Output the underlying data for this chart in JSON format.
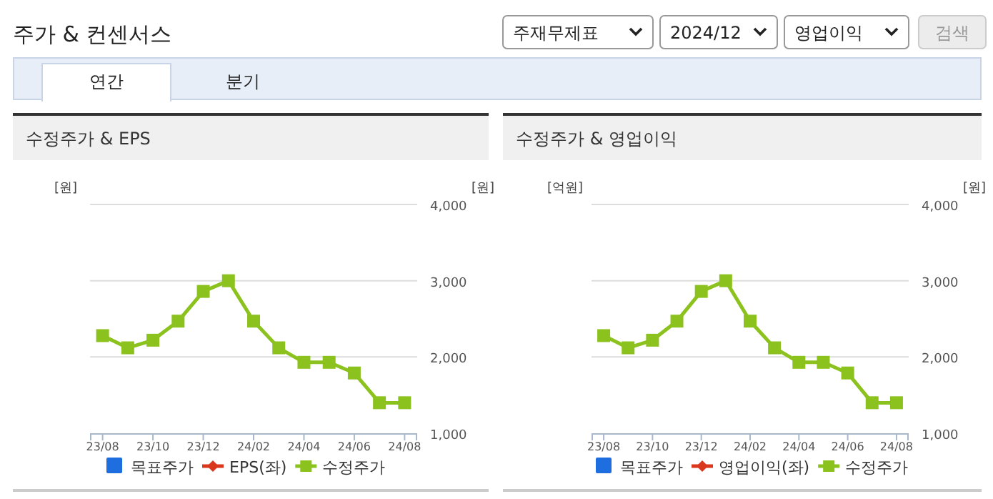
{
  "chart_data": [
    {
      "type": "other",
      "title": "주가 & 컨센서스",
      "annotations": [
        "주재무제표",
        "2024/12",
        "영업이익",
        "검색",
        "연간",
        "분기"
      ]
    },
    {
      "type": "line",
      "title": "수정주가 & EPS",
      "ylabel": "[원]",
      "y2label": "[원]",
      "categories": [
        "23/08",
        null,
        "23/10",
        null,
        "23/12",
        null,
        "24/02",
        null,
        "24/04",
        null,
        "24/06",
        null,
        "24/08"
      ],
      "y2lim": [
        1000,
        4000
      ],
      "y2ticks": [
        {
          "value": 1000,
          "label": "1,000"
        },
        {
          "value": 2000,
          "label": "2,000"
        },
        {
          "value": 3000,
          "label": "3,000"
        },
        {
          "value": 4000,
          "label": "4,000"
        }
      ],
      "grid": "y",
      "legend": "bottom",
      "marker": "square",
      "series": [
        {
          "name": "목표주가",
          "type": "bar",
          "color": "#1e6ee0",
          "values": [
            null,
            null,
            null,
            null,
            null,
            null,
            null,
            null,
            null,
            null,
            null,
            null,
            null
          ]
        },
        {
          "name": "EPS(좌)",
          "color": "#d9381e",
          "marker": "diamond",
          "values": [
            null,
            null,
            null,
            null,
            null,
            null,
            null,
            null,
            null,
            null,
            null,
            null,
            null
          ]
        },
        {
          "name": "수정주가",
          "color": "#8cc21e",
          "axis": "y2",
          "values": [
            2280,
            2120,
            2220,
            2470,
            2860,
            3000,
            2470,
            2120,
            1930,
            1930,
            1790,
            1400,
            1400
          ]
        }
      ]
    },
    {
      "type": "line",
      "title": "수정주가 & 영업이익",
      "ylabel": "[억원]",
      "y2label": "[원]",
      "categories": [
        "23/08",
        null,
        "23/10",
        null,
        "23/12",
        null,
        "24/02",
        null,
        "24/04",
        null,
        "24/06",
        null,
        "24/08"
      ],
      "y2lim": [
        1000,
        4000
      ],
      "y2ticks": [
        {
          "value": 1000,
          "label": "1,000"
        },
        {
          "value": 2000,
          "label": "2,000"
        },
        {
          "value": 3000,
          "label": "3,000"
        },
        {
          "value": 4000,
          "label": "4,000"
        }
      ],
      "grid": "y",
      "legend": "bottom",
      "marker": "square",
      "series": [
        {
          "name": "목표주가",
          "type": "bar",
          "color": "#1e6ee0",
          "values": [
            null,
            null,
            null,
            null,
            null,
            null,
            null,
            null,
            null,
            null,
            null,
            null,
            null
          ]
        },
        {
          "name": "영업이익(좌)",
          "color": "#d9381e",
          "marker": "diamond",
          "values": [
            null,
            null,
            null,
            null,
            null,
            null,
            null,
            null,
            null,
            null,
            null,
            null,
            null
          ]
        },
        {
          "name": "수정주가",
          "color": "#8cc21e",
          "axis": "y2",
          "values": [
            2280,
            2120,
            2220,
            2470,
            2860,
            3000,
            2470,
            2120,
            1930,
            1930,
            1790,
            1400,
            1400
          ]
        }
      ]
    }
  ]
}
